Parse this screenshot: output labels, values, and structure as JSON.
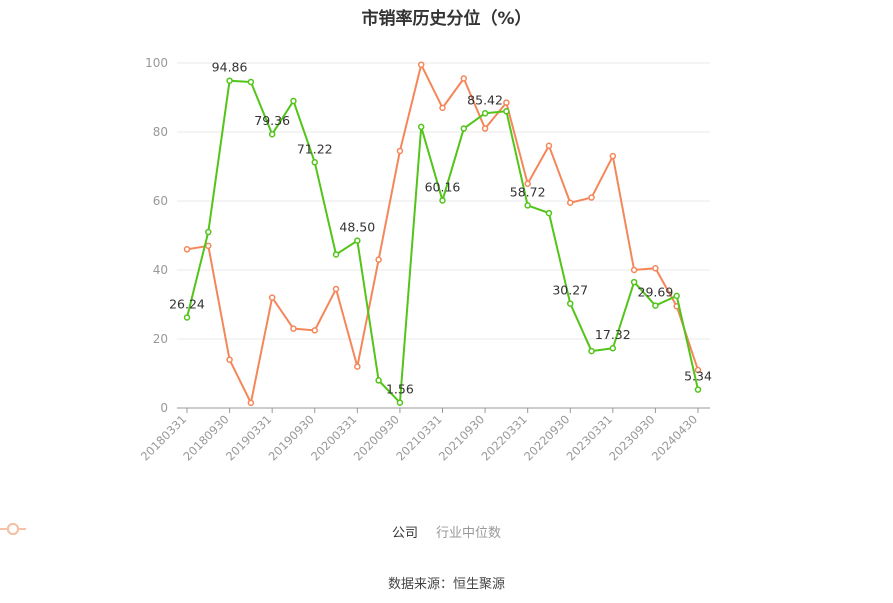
{
  "title": "市销率历史分位（%）",
  "source": "数据来源：恒生聚源",
  "legend": [
    {
      "label": "公司",
      "color": "#52c41a"
    },
    {
      "label": "行业中位数",
      "color": "#f4875a"
    }
  ],
  "chart_data": {
    "type": "line",
    "x_tick_labels": [
      "20180331",
      "20180930",
      "20190331",
      "20190930",
      "20200331",
      "20200930",
      "20210331",
      "20210930",
      "20220331",
      "20220930",
      "20230331",
      "20230930",
      "20240430"
    ],
    "ylim": [
      0,
      100
    ],
    "y_ticks": [
      0,
      20,
      40,
      60,
      80,
      100
    ],
    "grid": true,
    "legend_position": "bottom",
    "series": [
      {
        "name": "公司",
        "color": "#52c41a",
        "values": [
          26.24,
          51,
          94.86,
          94.5,
          79.36,
          89,
          71.22,
          44.5,
          48.5,
          8,
          1.56,
          81.5,
          60.16,
          81,
          85.42,
          86,
          58.72,
          56.5,
          30.27,
          16.5,
          17.32,
          36.5,
          29.69,
          32.5,
          5.34
        ],
        "labels": {
          "0": "26.24",
          "2": "94.86",
          "4": "79.36",
          "6": "71.22",
          "8": "48.50",
          "10": "1.56",
          "12": "60.16",
          "14": "85.42",
          "16": "58.72",
          "18": "30.27",
          "20": "17.32",
          "22": "29.69",
          "24": "5.34"
        }
      },
      {
        "name": "行业中位数",
        "color": "#f4875a",
        "values": [
          46,
          47,
          14,
          1.5,
          32,
          23,
          22.5,
          34.5,
          12,
          43,
          74.5,
          99.5,
          87,
          95.5,
          81,
          88.5,
          65,
          76,
          59.5,
          61,
          73,
          40,
          40.5,
          29.5,
          11
        ]
      }
    ]
  }
}
